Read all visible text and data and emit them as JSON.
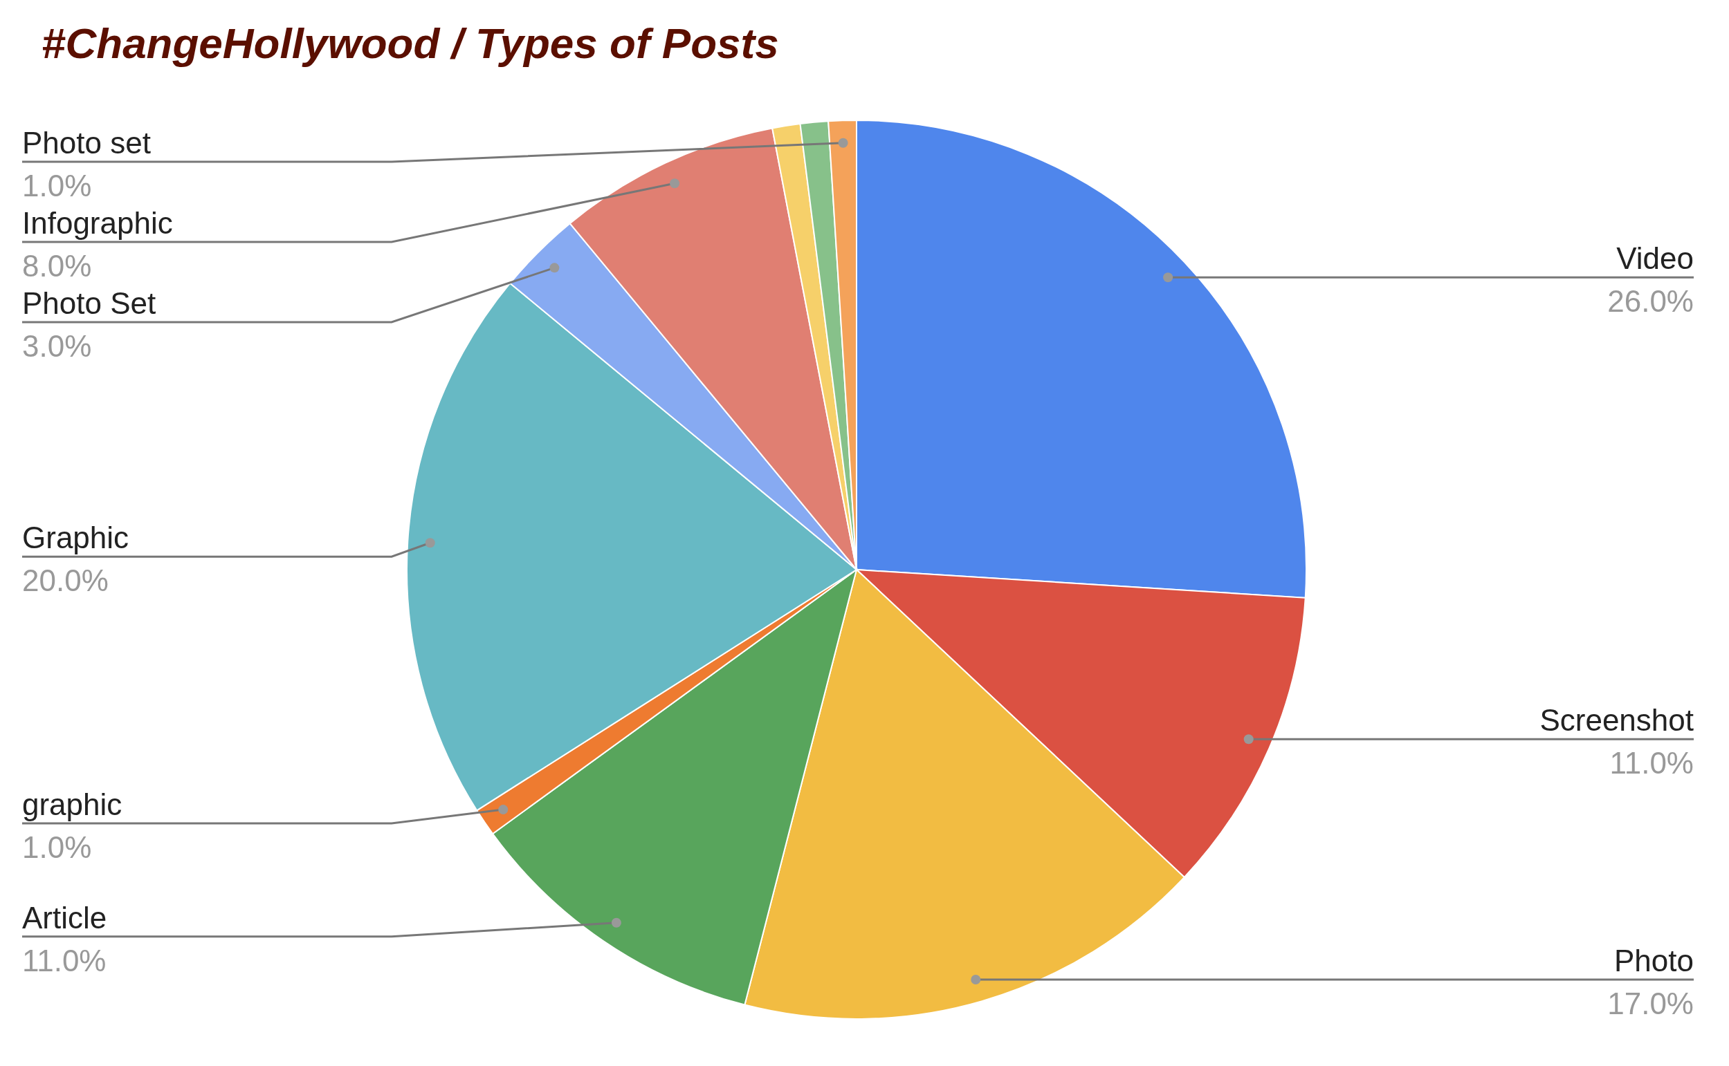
{
  "chart_data": {
    "type": "pie",
    "title": "#ChangeHollywood / Types of Posts",
    "categories": [
      "Video",
      "Screenshot",
      "Photo",
      "Article",
      "graphic",
      "Graphic",
      "Photo Set",
      "Infographic",
      null,
      null,
      "Photo set"
    ],
    "values": [
      26,
      11,
      17,
      11,
      1,
      20,
      3,
      8,
      1,
      1,
      1
    ],
    "colors": [
      "#4f86ec",
      "#db5142",
      "#f2bc42",
      "#58a55c",
      "#ee7b30",
      "#67b9c4",
      "#87aaf2",
      "#e07f72",
      "#f6d06a",
      "#87c18a",
      "#f4a25a"
    ],
    "value_labels": [
      "26.0%",
      "11.0%",
      "17.0%",
      "11.0%",
      "1.0%",
      "20.0%",
      "3.0%",
      "8.0%",
      null,
      null,
      "1.0%"
    ]
  }
}
